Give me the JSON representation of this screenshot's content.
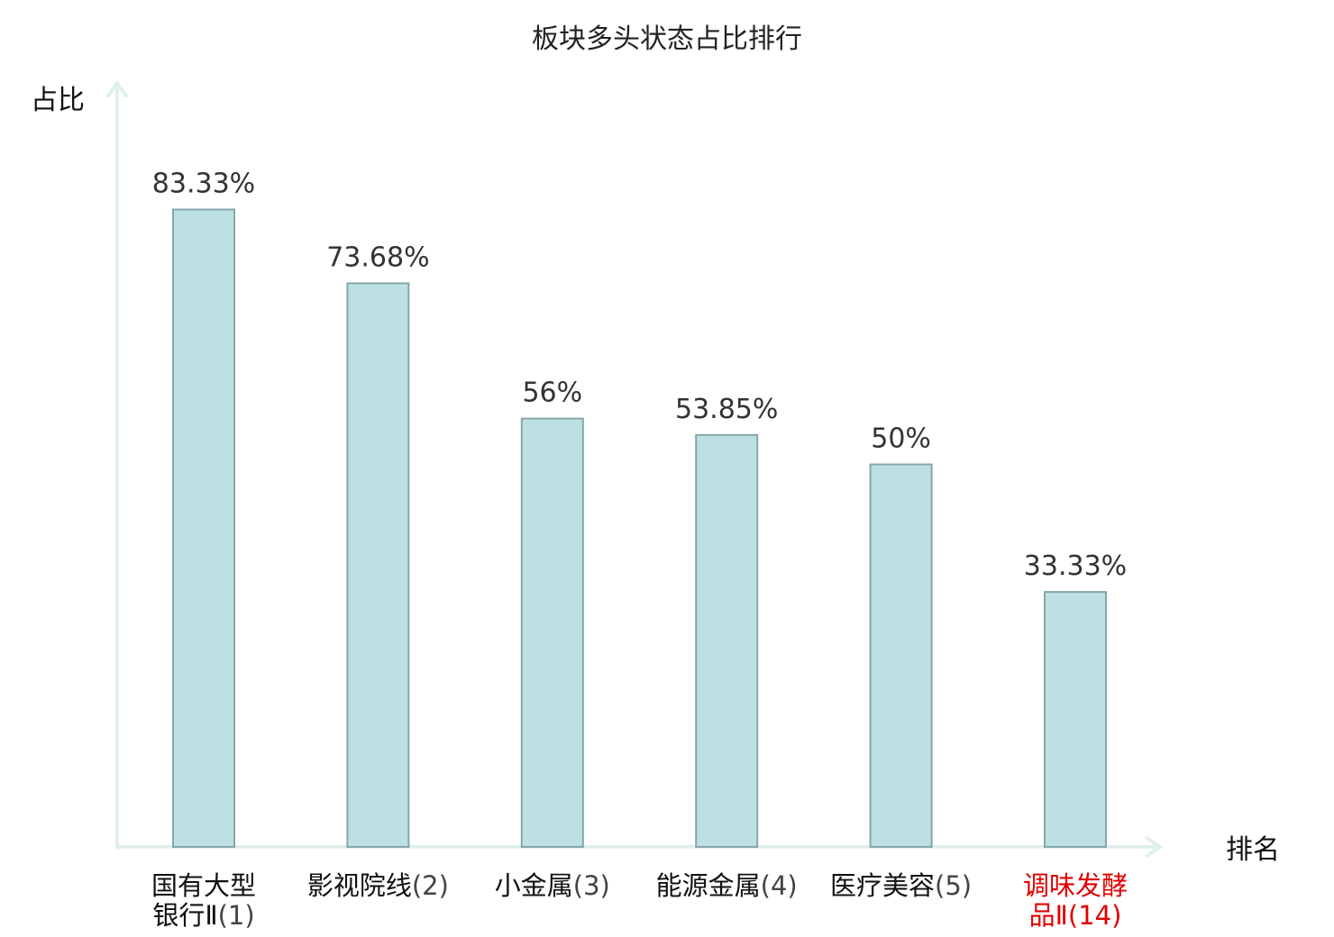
{
  "chart_data": {
    "type": "bar",
    "title": "板块多头状态占比排行",
    "ylabel": "占比",
    "xlabel": "排名",
    "ylim": [
      0,
      100
    ],
    "grid": false,
    "categories": [
      {
        "lines": [
          "国有大型",
          "银行Ⅱ"
        ],
        "rank": "(1)"
      },
      {
        "lines": [
          "影视院线"
        ],
        "rank": "(2)"
      },
      {
        "lines": [
          "小金属"
        ],
        "rank": "(3)"
      },
      {
        "lines": [
          "能源金属"
        ],
        "rank": "(4)"
      },
      {
        "lines": [
          "医疗美容"
        ],
        "rank": "(5)"
      },
      {
        "lines": [
          "调味发酵",
          "品Ⅱ"
        ],
        "rank": "(14)",
        "highlight": true
      }
    ],
    "values": [
      83.33,
      73.68,
      56,
      53.85,
      50,
      33.33
    ],
    "value_labels": [
      "83.33%",
      "73.68%",
      "56%",
      "53.85%",
      "50%",
      "33.33%"
    ],
    "colors": {
      "bar_fill": "#bde0e3",
      "bar_stroke": "#86a6a8",
      "axis": "#dff0ee",
      "highlight": "#e00000"
    }
  }
}
